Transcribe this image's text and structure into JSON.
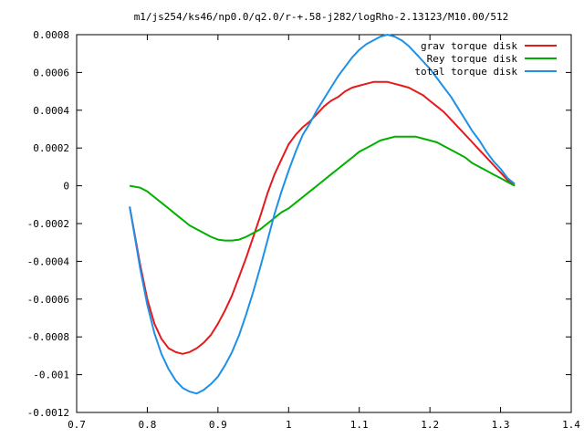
{
  "chart_data": {
    "type": "line",
    "title": "m1/js254/ks46/np0.0/q2.0/r-+.58-j282/logRho-2.13123/M10.00/512",
    "xlabel": "",
    "ylabel": "",
    "xlim": [
      0.7,
      1.4
    ],
    "ylim": [
      -0.0012,
      0.0008
    ],
    "x_ticks": [
      "0.7",
      "0.8",
      "0.9",
      "1",
      "1.1",
      "1.2",
      "1.3",
      "1.4"
    ],
    "y_ticks": [
      "-0.0012",
      "-0.001",
      "-0.0008",
      "-0.0006",
      "-0.0004",
      "-0.0002",
      "0",
      "0.0002",
      "0.0004",
      "0.0006",
      "0.0008"
    ],
    "grid": false,
    "legend": "top-right",
    "series": [
      {
        "name": "grav torque disk",
        "color": "#e41a1c",
        "x": [
          0.775,
          0.79,
          0.8,
          0.81,
          0.82,
          0.83,
          0.84,
          0.85,
          0.86,
          0.87,
          0.88,
          0.89,
          0.9,
          0.91,
          0.92,
          0.93,
          0.94,
          0.95,
          0.96,
          0.97,
          0.98,
          0.99,
          1.0,
          1.01,
          1.02,
          1.03,
          1.04,
          1.05,
          1.06,
          1.07,
          1.08,
          1.09,
          1.1,
          1.11,
          1.12,
          1.13,
          1.14,
          1.15,
          1.16,
          1.17,
          1.18,
          1.19,
          1.2,
          1.21,
          1.22,
          1.23,
          1.24,
          1.25,
          1.26,
          1.27,
          1.28,
          1.29,
          1.3,
          1.31,
          1.32
        ],
        "y": [
          -0.00011,
          -0.00042,
          -0.0006,
          -0.00073,
          -0.00081,
          -0.00086,
          -0.00088,
          -0.00089,
          -0.00088,
          -0.00086,
          -0.00083,
          -0.00079,
          -0.00073,
          -0.00066,
          -0.00058,
          -0.00048,
          -0.00038,
          -0.00027,
          -0.00016,
          -4e-05,
          6e-05,
          0.00014,
          0.00022,
          0.00027,
          0.00031,
          0.00034,
          0.00038,
          0.00042,
          0.00045,
          0.00047,
          0.0005,
          0.00052,
          0.00053,
          0.00054,
          0.00055,
          0.00055,
          0.00055,
          0.00054,
          0.00053,
          0.00052,
          0.0005,
          0.00048,
          0.00045,
          0.00042,
          0.00039,
          0.00035,
          0.00031,
          0.00027,
          0.00023,
          0.00019,
          0.00015,
          0.00011,
          7e-05,
          3e-05,
          0.0
        ]
      },
      {
        "name": "Rey torque disk",
        "color": "#00b000",
        "x": [
          0.775,
          0.79,
          0.8,
          0.81,
          0.82,
          0.83,
          0.84,
          0.85,
          0.86,
          0.87,
          0.88,
          0.89,
          0.9,
          0.91,
          0.92,
          0.93,
          0.94,
          0.95,
          0.96,
          0.97,
          0.98,
          0.99,
          1.0,
          1.01,
          1.02,
          1.03,
          1.04,
          1.05,
          1.06,
          1.07,
          1.08,
          1.09,
          1.1,
          1.11,
          1.12,
          1.13,
          1.14,
          1.15,
          1.16,
          1.17,
          1.18,
          1.19,
          1.2,
          1.21,
          1.22,
          1.23,
          1.24,
          1.25,
          1.26,
          1.27,
          1.28,
          1.29,
          1.3,
          1.31,
          1.32
        ],
        "y": [
          0.0,
          -1e-05,
          -3e-05,
          -6e-05,
          -9e-05,
          -0.00012,
          -0.00015,
          -0.00018,
          -0.00021,
          -0.00023,
          -0.00025,
          -0.00027,
          -0.000285,
          -0.00029,
          -0.00029,
          -0.000285,
          -0.00027,
          -0.00025,
          -0.00023,
          -0.0002,
          -0.00017,
          -0.00014,
          -0.00012,
          -9e-05,
          -6e-05,
          -3e-05,
          0.0,
          3e-05,
          6e-05,
          9e-05,
          0.00012,
          0.00015,
          0.00018,
          0.0002,
          0.00022,
          0.00024,
          0.00025,
          0.00026,
          0.00026,
          0.00026,
          0.00026,
          0.00025,
          0.00024,
          0.00023,
          0.00021,
          0.00019,
          0.00017,
          0.00015,
          0.00012,
          0.0001,
          8e-05,
          6e-05,
          4e-05,
          2e-05,
          0.0
        ]
      },
      {
        "name": "total torque disk",
        "color": "#1e90e6",
        "x": [
          0.775,
          0.79,
          0.8,
          0.81,
          0.82,
          0.83,
          0.84,
          0.85,
          0.86,
          0.87,
          0.88,
          0.89,
          0.9,
          0.91,
          0.92,
          0.93,
          0.94,
          0.95,
          0.96,
          0.97,
          0.98,
          0.99,
          1.0,
          1.01,
          1.02,
          1.03,
          1.04,
          1.05,
          1.06,
          1.07,
          1.08,
          1.09,
          1.1,
          1.11,
          1.12,
          1.13,
          1.14,
          1.15,
          1.16,
          1.17,
          1.18,
          1.19,
          1.2,
          1.21,
          1.22,
          1.23,
          1.24,
          1.25,
          1.26,
          1.27,
          1.28,
          1.29,
          1.3,
          1.31,
          1.32
        ],
        "y": [
          -0.00011,
          -0.00044,
          -0.00063,
          -0.00078,
          -0.00089,
          -0.00097,
          -0.00103,
          -0.00107,
          -0.00109,
          -0.0011,
          -0.00108,
          -0.00105,
          -0.00101,
          -0.00095,
          -0.00088,
          -0.00079,
          -0.00068,
          -0.00056,
          -0.00043,
          -0.00029,
          -0.00015,
          -3e-05,
          8e-05,
          0.00018,
          0.00027,
          0.00033,
          0.0004,
          0.00046,
          0.00052,
          0.00058,
          0.00063,
          0.00068,
          0.00072,
          0.00075,
          0.00077,
          0.00079,
          0.0008,
          0.00079,
          0.00077,
          0.00074,
          0.0007,
          0.00066,
          0.00062,
          0.00057,
          0.00052,
          0.00047,
          0.00041,
          0.00035,
          0.00029,
          0.00024,
          0.00018,
          0.00013,
          9e-05,
          4e-05,
          1e-05
        ]
      }
    ]
  }
}
